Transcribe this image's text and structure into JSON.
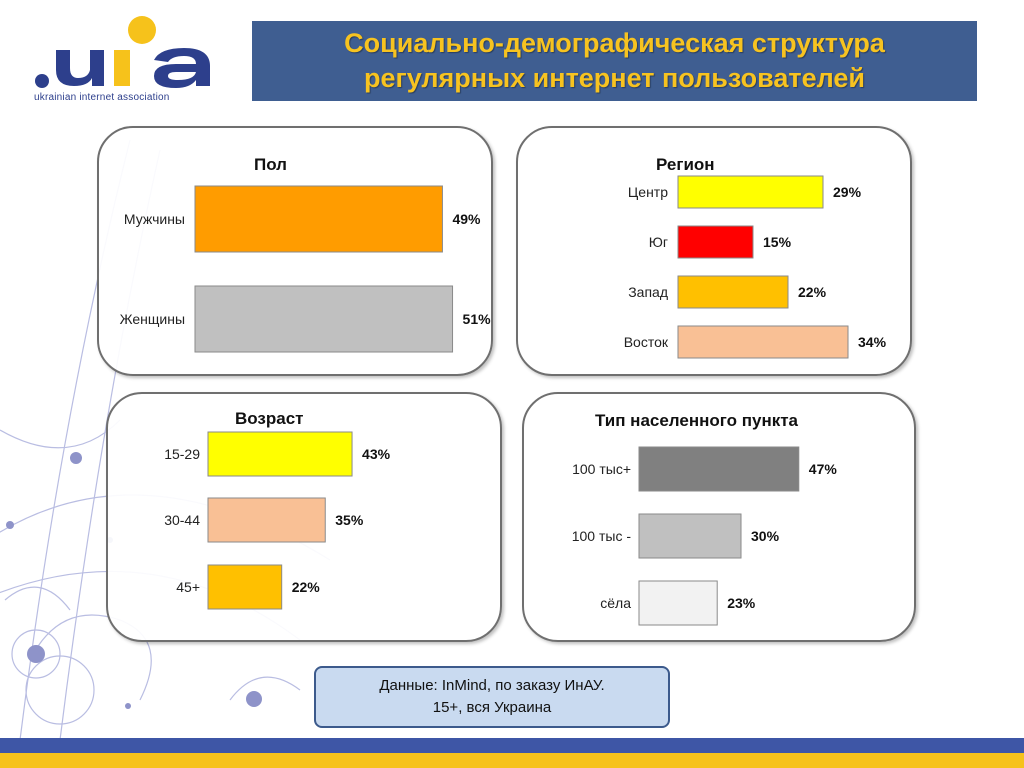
{
  "logo": {
    "mark_text": ".uia",
    "caption": "ukrainian internet association"
  },
  "title": {
    "line1": "Социально-демографическая структура",
    "line2": "регулярных интернет пользователей"
  },
  "chart_data": [
    {
      "id": "gender",
      "type": "bar",
      "orientation": "horizontal",
      "title": "Пол",
      "xlim": [
        0,
        60
      ],
      "categories": [
        "Мужчины",
        "Женщины"
      ],
      "values": [
        49,
        51
      ],
      "value_labels": [
        "49%",
        "51%"
      ],
      "colors": [
        "#ff9c00",
        "#c0c0c0"
      ]
    },
    {
      "id": "region",
      "type": "bar",
      "orientation": "horizontal",
      "title": "Регион",
      "xlim": [
        0,
        60
      ],
      "categories": [
        "Центр",
        "Юг",
        "Запад",
        "Восток"
      ],
      "values": [
        29,
        15,
        22,
        34
      ],
      "value_labels": [
        "29%",
        "15%",
        "22%",
        "34%"
      ],
      "colors": [
        "#ffff00",
        "#ff0000",
        "#ffc000",
        "#f9c095"
      ]
    },
    {
      "id": "age",
      "type": "bar",
      "orientation": "horizontal",
      "title": "Возраст",
      "xlim": [
        0,
        60
      ],
      "categories": [
        "15-29",
        "30-44",
        "45+"
      ],
      "values": [
        43,
        35,
        22
      ],
      "value_labels": [
        "43%",
        "35%",
        "22%"
      ],
      "colors": [
        "#ffff00",
        "#f9c095",
        "#ffc000"
      ]
    },
    {
      "id": "settlement",
      "type": "bar",
      "orientation": "horizontal",
      "title": "Тип населенного пункта",
      "xlim": [
        0,
        60
      ],
      "categories": [
        "100 тыс+",
        "100 тыс -",
        "сёла"
      ],
      "values": [
        47,
        30,
        23
      ],
      "value_labels": [
        "47%",
        "30%",
        "23%"
      ],
      "colors": [
        "#808080",
        "#c0c0c0",
        "#f2f2f2"
      ]
    }
  ],
  "source": {
    "line1": "Данные: InMind, по заказу ИнАУ.",
    "line2": "15+, вся Украина"
  },
  "colors": {
    "title_bg": "#3f5e91",
    "title_text": "#f7c320",
    "stripe_blue": "#3e56a6",
    "stripe_yellow": "#f6c21b"
  }
}
